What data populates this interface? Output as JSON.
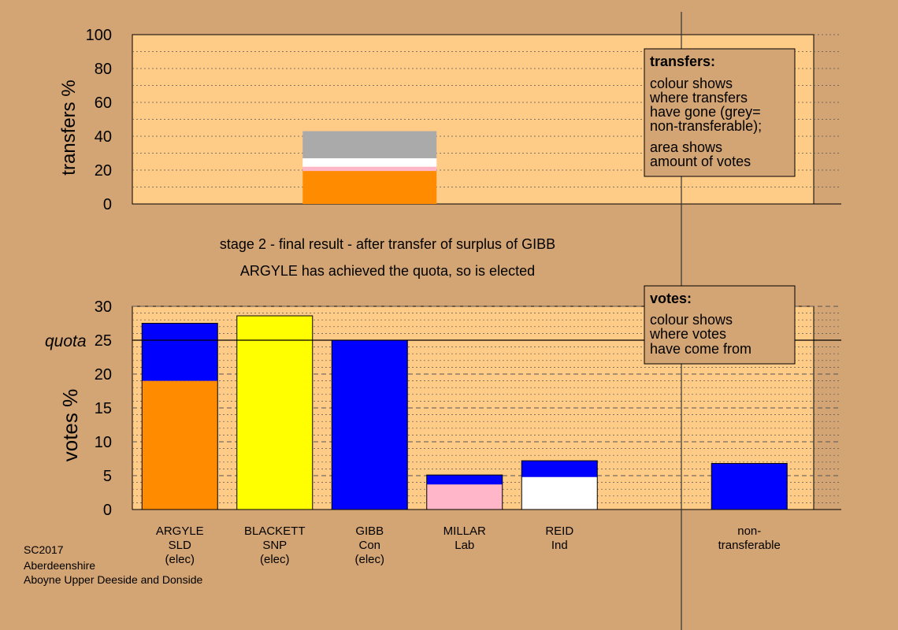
{
  "colors": {
    "page_bg": "#d4a574",
    "plot_bg": "#ffcc88",
    "legend_bg": "#d4a574",
    "SLD": "#ff8c00",
    "SNP": "#ffff00",
    "Con": "#0000ff",
    "Lab": "#ffb6c8",
    "Ind": "#ffffff",
    "non_transferable": "#aaaaaa"
  },
  "notes": {
    "stage": "stage 2 - final result - after transfer of surplus of GIBB",
    "outcome": "ARGYLE has achieved the quota, so is elected"
  },
  "footer": {
    "line1": "SC2017",
    "line2": "Aberdeenshire",
    "line3": "Aboyne Upper Deeside and Donside"
  },
  "legends": {
    "transfers": {
      "title": "transfers:",
      "lines": [
        "colour shows",
        "where transfers",
        "have gone (grey=",
        "non-transferable);",
        "area shows",
        "amount of votes"
      ]
    },
    "votes": {
      "title": "votes:",
      "lines": [
        "colour shows",
        "where votes",
        "have come from"
      ]
    }
  },
  "chart_data": [
    {
      "type": "bar",
      "stacked": true,
      "ylabel": "transfers %",
      "ylim": [
        0,
        100
      ],
      "yticks": [
        0,
        20,
        40,
        60,
        80,
        100
      ],
      "grid": "dotted every 10",
      "bar_column": 2,
      "stack": [
        {
          "name": "SLD",
          "color": "#ff8c00",
          "value": 19.5
        },
        {
          "name": "Lab",
          "color": "#ffb6c8",
          "value": 2.5
        },
        {
          "name": "Ind",
          "color": "#ffffff",
          "value": 5.0
        },
        {
          "name": "non-transferable",
          "color": "#aaaaaa",
          "value": 16.0
        }
      ],
      "total": 43.0
    },
    {
      "type": "bar",
      "stacked": true,
      "ylabel": "votes %",
      "ylim": [
        0,
        30
      ],
      "yticks": [
        0,
        5,
        10,
        15,
        20,
        25,
        30
      ],
      "quota": 25,
      "quota_label": "quota",
      "grid": "dotted every 1, dashed every 5",
      "categories": [
        {
          "name": "ARGYLE",
          "party": "SLD",
          "status": "(elec)",
          "segments": [
            {
              "color": "#ff8c00",
              "value": 19.0
            },
            {
              "color": "#0000ff",
              "value": 8.5
            }
          ]
        },
        {
          "name": "BLACKETT",
          "party": "SNP",
          "status": "(elec)",
          "segments": [
            {
              "color": "#ffff00",
              "value": 28.6
            }
          ]
        },
        {
          "name": "GIBB",
          "party": "Con",
          "status": "(elec)",
          "segments": [
            {
              "color": "#0000ff",
              "value": 25.0
            }
          ]
        },
        {
          "name": "MILLAR",
          "party": "Lab",
          "status": "",
          "segments": [
            {
              "color": "#ffb6c8",
              "value": 3.7
            },
            {
              "color": "#0000ff",
              "value": 1.4
            }
          ]
        },
        {
          "name": "REID",
          "party": "Ind",
          "status": "",
          "segments": [
            {
              "color": "#ffffff",
              "value": 4.8
            },
            {
              "color": "#0000ff",
              "value": 2.4
            }
          ]
        },
        {
          "name": "non-transferable",
          "lines": [
            "non-",
            "transferable"
          ],
          "segments": [
            {
              "color": "#0000ff",
              "value": 6.8
            }
          ]
        }
      ]
    }
  ]
}
